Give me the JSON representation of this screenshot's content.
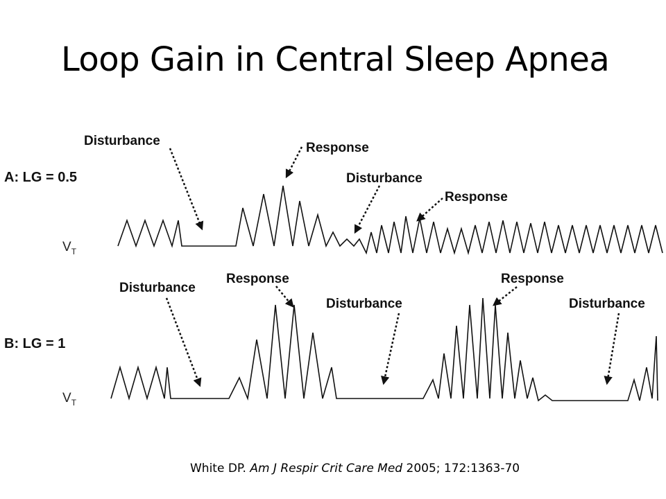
{
  "title": "Loop Gain in Central Sleep Apnea",
  "panels": [
    {
      "label": "A: LG = 0.5",
      "trace_label": "V",
      "trace_sub": "T",
      "annotations": [
        "Disturbance",
        "Response",
        "Disturbance",
        "Response"
      ]
    },
    {
      "label": "B: LG = 1",
      "trace_label": "V",
      "trace_sub": "T",
      "annotations": [
        "Disturbance",
        "Response",
        "Disturbance",
        "Response",
        "Disturbance"
      ]
    }
  ],
  "citation": {
    "prefix": "White DP. ",
    "journal": "Am J Respir Crit Care Med",
    "suffix": " 2005; 172:1363-70"
  }
}
